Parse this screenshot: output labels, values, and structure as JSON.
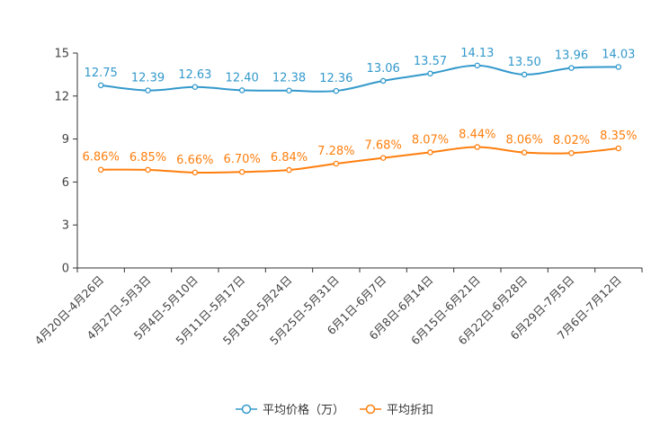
{
  "chart_data": {
    "type": "line",
    "title": "",
    "xlabel": "",
    "ylabel": "",
    "ylim": [
      0,
      15
    ],
    "yticks": [
      0,
      3,
      6,
      9,
      12,
      15
    ],
    "categories": [
      "4月20日-4月26日",
      "4月27日-5月3日",
      "5月4日-5月10日",
      "5月11日-5月17日",
      "5月18日-5月24日",
      "5月25日-5月31日",
      "6月1日-6月7日",
      "6月8日-6月14日",
      "6月15日-6月21日",
      "6月22日-6月28日",
      "6月29日-7月5日",
      "7月6日-7月12日"
    ],
    "series": [
      {
        "name": "平均价格（万）",
        "color": "#3399cc",
        "values": [
          12.75,
          12.39,
          12.63,
          12.4,
          12.38,
          12.36,
          13.06,
          13.57,
          14.13,
          13.5,
          13.96,
          14.03
        ],
        "labels": [
          "12.75",
          "12.39",
          "12.63",
          "12.40",
          "12.38",
          "12.36",
          "13.06",
          "13.57",
          "14.13",
          "13.50",
          "13.96",
          "14.03"
        ]
      },
      {
        "name": "平均折扣",
        "color": "#ff7f0e",
        "values": [
          6.86,
          6.85,
          6.66,
          6.7,
          6.84,
          7.28,
          7.68,
          8.07,
          8.44,
          8.06,
          8.02,
          8.35
        ],
        "labels": [
          "6.86%",
          "6.85%",
          "6.66%",
          "6.70%",
          "6.84%",
          "7.28%",
          "7.68%",
          "8.07%",
          "8.44%",
          "8.06%",
          "8.02%",
          "8.35%"
        ]
      }
    ],
    "legend_position": "bottom-center"
  }
}
